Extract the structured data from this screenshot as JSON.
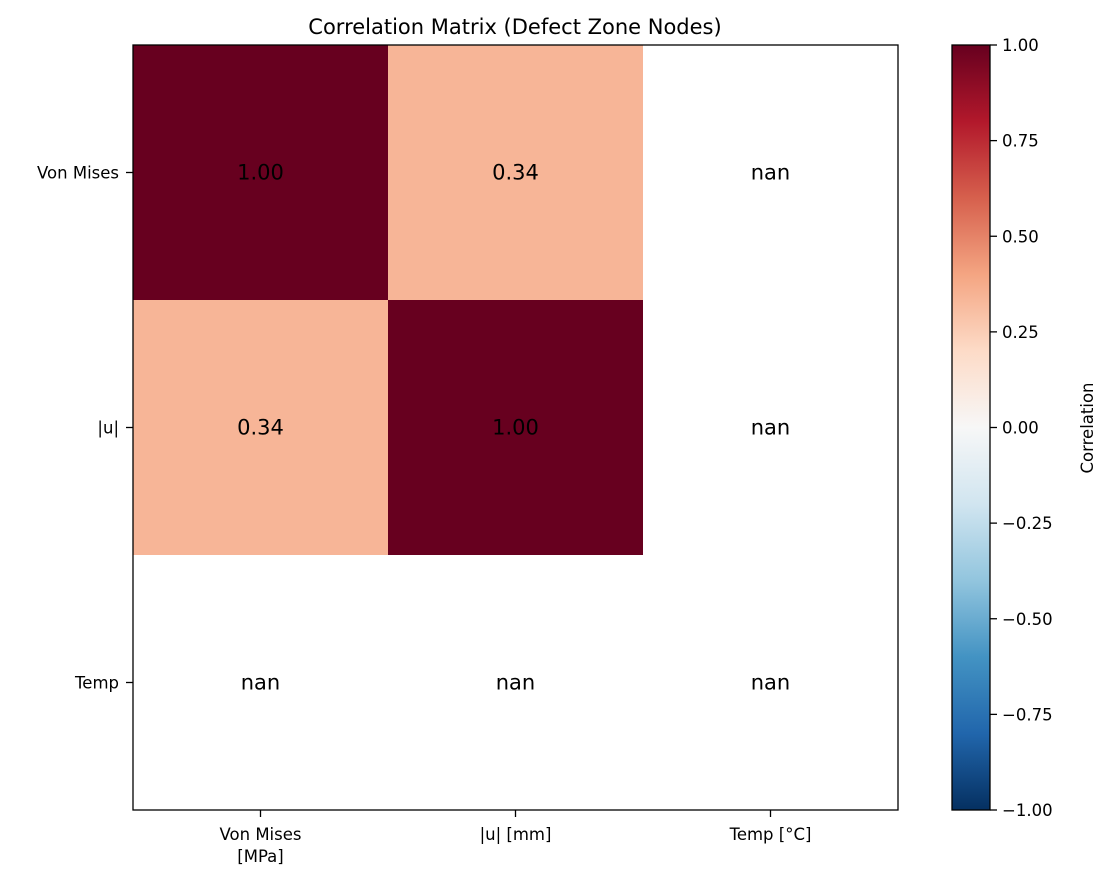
{
  "chart_data": {
    "type": "heatmap",
    "title": "Correlation Matrix (Defect Zone Nodes)",
    "x_categories": [
      [
        "Von Mises",
        "[MPa]"
      ],
      [
        "|u| [mm]"
      ],
      [
        "Temp [°C]"
      ]
    ],
    "y_categories": [
      "Von Mises",
      "|u|",
      "Temp"
    ],
    "values": [
      [
        1.0,
        0.34,
        null
      ],
      [
        0.34,
        1.0,
        null
      ],
      [
        null,
        null,
        null
      ]
    ],
    "cell_labels": [
      [
        "1.00",
        "0.34",
        "nan"
      ],
      [
        "0.34",
        "1.00",
        "nan"
      ],
      [
        "nan",
        "nan",
        "nan"
      ]
    ],
    "colormap": "RdBu_r",
    "vmin": -1.0,
    "vmax": 1.0,
    "nan_color": "#ffffff",
    "colorbar": {
      "label": "Correlation",
      "ticks": [
        -1.0,
        -0.75,
        -0.5,
        -0.25,
        0.0,
        0.25,
        0.5,
        0.75,
        1.0
      ],
      "tick_labels": [
        "−1.00",
        "−0.75",
        "−0.50",
        "−0.25",
        "0.00",
        "0.25",
        "0.50",
        "0.75",
        "1.00"
      ]
    },
    "grid": false
  }
}
